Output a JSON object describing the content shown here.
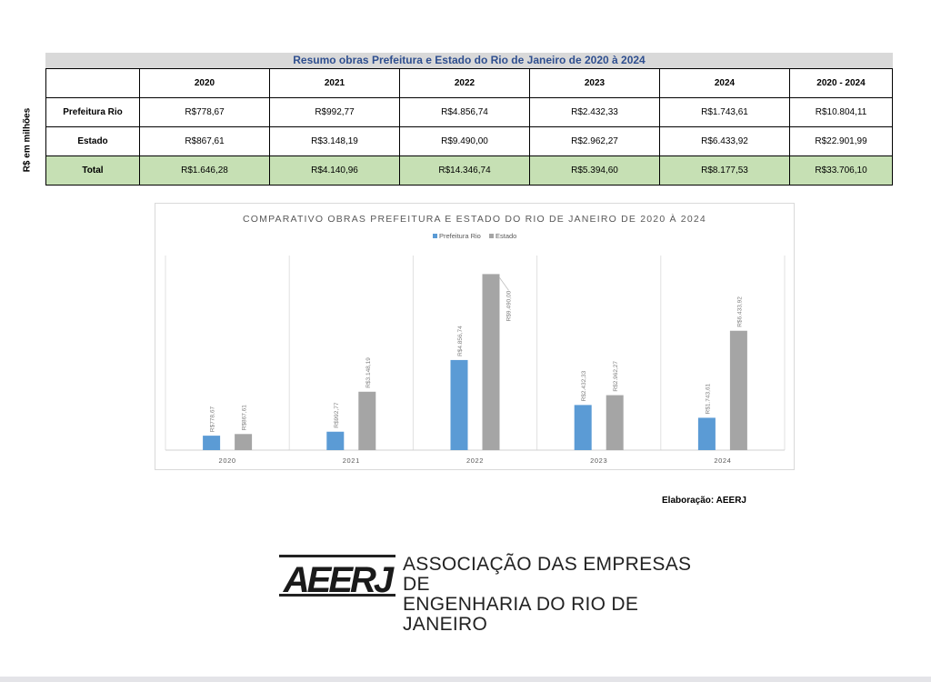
{
  "table": {
    "title": "Resumo obras Prefeitura e Estado do Rio de Janeiro de 2020 à 2024",
    "side_label": "R$ em milhões",
    "headers": [
      "",
      "2020",
      "2021",
      "2022",
      "2023",
      "2024",
      "2020 - 2024"
    ],
    "rows": [
      {
        "label": "Prefeitura Rio",
        "cells": [
          "R$778,67",
          "R$992,77",
          "R$4.856,74",
          "R$2.432,33",
          "R$1.743,61",
          "R$10.804,11"
        ]
      },
      {
        "label": "Estado",
        "cells": [
          "R$867,61",
          "R$3.148,19",
          "R$9.490,00",
          "R$2.962,27",
          "R$6.433,92",
          "R$22.901,99"
        ]
      },
      {
        "label": "Total",
        "cells": [
          "R$1.646,28",
          "R$4.140,96",
          "R$14.346,74",
          "R$5.394,60",
          "R$8.177,53",
          "R$33.706,10"
        ]
      }
    ],
    "total_fill_color": "#c6e0b4",
    "title_color": "#2f4f8f"
  },
  "chart_data": {
    "type": "bar",
    "title": "COMPARATIVO OBRAS PREFEITURA E ESTADO DO RIO DE JANEIRO DE 2020 À 2024",
    "categories": [
      "2020",
      "2021",
      "2022",
      "2023",
      "2024"
    ],
    "series": [
      {
        "name": "Prefeitura Rio",
        "color": "#5b9bd5",
        "values": [
          778.67,
          992.77,
          4856.74,
          2432.33,
          1743.61
        ],
        "labels": [
          "R$778,67",
          "R$992,77",
          "R$4.856,74",
          "R$2.432,33",
          "R$1.743,61"
        ]
      },
      {
        "name": "Estado",
        "color": "#a5a5a5",
        "values": [
          867.61,
          3148.19,
          9490.0,
          2962.27,
          6433.92
        ],
        "labels": [
          "R$867,61",
          "R$3.148,19",
          "R$9.490,00",
          "R$2.962,27",
          "R$6.433,92"
        ]
      }
    ],
    "ylim": [
      0,
      10000
    ],
    "legend_position": "top-center",
    "grid": false
  },
  "credit": "Elaboração: AEERJ",
  "logo": {
    "mark_text": "AEERJ",
    "line1": "ASSOCIAÇÃO DAS EMPRESAS  DE",
    "line2": "ENGENHARIA DO RIO DE JANEIRO"
  }
}
